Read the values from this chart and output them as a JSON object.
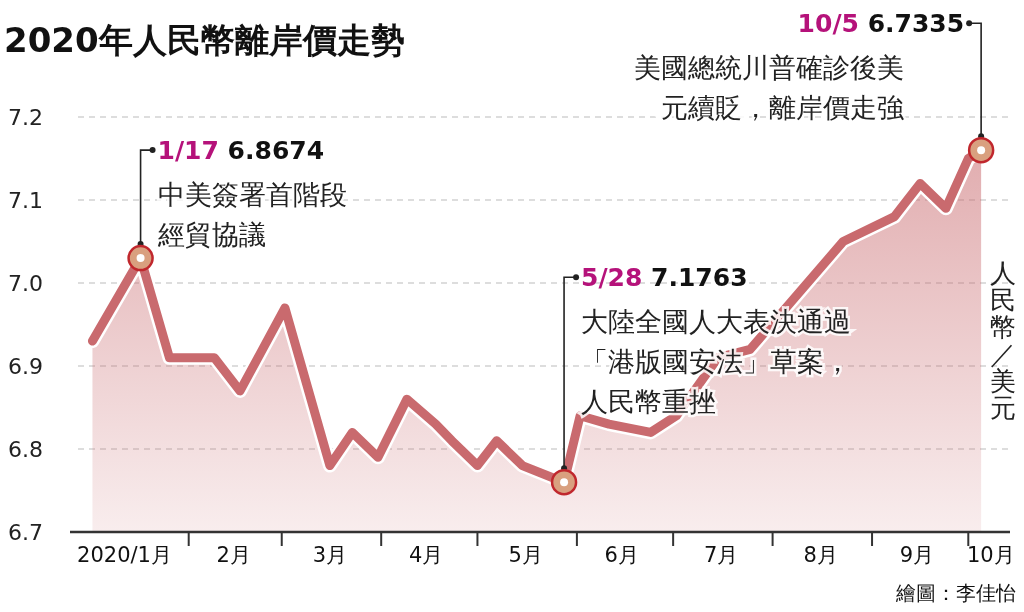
{
  "chart_data": {
    "type": "area",
    "title": "2020年人民幣離岸價走勢",
    "ylabel": "人民幣／美元",
    "xlim": [
      "2019-12-26",
      "2020-10-14"
    ],
    "xticks": [
      {
        "value": "2020-01-12",
        "label": "2020/1月"
      },
      {
        "value": "2020-02-01",
        "label": null
      },
      {
        "value": "2020-02-15",
        "label": "2月"
      },
      {
        "value": "2020-03-01",
        "label": null
      },
      {
        "value": "2020-03-16",
        "label": "3月"
      },
      {
        "value": "2020-04-01",
        "label": null
      },
      {
        "value": "2020-04-15",
        "label": "4月"
      },
      {
        "value": "2020-05-01",
        "label": null
      },
      {
        "value": "2020-05-16",
        "label": "5月"
      },
      {
        "value": "2020-06-01",
        "label": null
      },
      {
        "value": "2020-06-15",
        "label": "6月"
      },
      {
        "value": "2020-07-01",
        "label": null
      },
      {
        "value": "2020-07-16",
        "label": "7月"
      },
      {
        "value": "2020-08-01",
        "label": null
      },
      {
        "value": "2020-08-16",
        "label": "8月"
      },
      {
        "value": "2020-09-01",
        "label": null
      },
      {
        "value": "2020-09-15",
        "label": "9月"
      },
      {
        "value": "2020-10-01",
        "label": null
      },
      {
        "value": "2020-10-08",
        "label": "10月"
      }
    ],
    "ylim": [
      6.7,
      7.2
    ],
    "yticks": [
      6.7,
      6.8,
      6.9,
      {
        "value": 7,
        "label": "7.0"
      },
      7.1,
      7.2
    ],
    "grid": "y",
    "x": [
      "2020-01-02",
      "2020-01-17",
      "2020-01-26",
      "2020-02-09",
      "2020-02-17",
      "2020-03-02",
      "2020-03-16",
      "2020-03-23",
      "2020-03-31",
      "2020-04-09",
      "2020-04-18",
      "2020-04-23",
      "2020-05-01",
      "2020-05-07",
      "2020-05-15",
      "2020-05-28",
      "2020-06-02",
      "2020-06-11",
      "2020-06-24",
      "2020-07-02",
      "2020-07-15",
      "2020-07-25",
      "2020-08-23",
      "2020-09-08",
      "2020-09-16",
      "2020-09-24",
      "2020-10-01",
      "2020-10-05"
    ],
    "series": [
      {
        "color": "#c96a6e",
        "values": [
          6.93,
          7.03,
          6.91,
          6.91,
          6.87,
          6.97,
          6.78,
          6.82,
          6.79,
          6.86,
          6.83,
          6.81,
          6.78,
          6.81,
          6.78,
          6.76,
          6.84,
          6.83,
          6.82,
          6.84,
          6.91,
          6.92,
          7.05,
          7.08,
          7.12,
          7.09,
          7.15,
          7.16
        ]
      }
    ],
    "annotations": [
      {
        "text": "1/17 6.8674\n中美簽署首階段經貿協議",
        "x": "2020-01-17",
        "y": 7.03
      },
      {
        "text": "5/28 7.1763\n大陸全國人大表決通過「港版國安法」草案，人民幣重挫",
        "x": "2020-05-28",
        "y": 6.76
      },
      {
        "text": "10/5 6.7335\n美國總統川普確診後美元續貶，離岸價走強",
        "x": "2020-10-05",
        "y": 7.16
      },
      "繪圖：李佳怡"
    ]
  }
}
